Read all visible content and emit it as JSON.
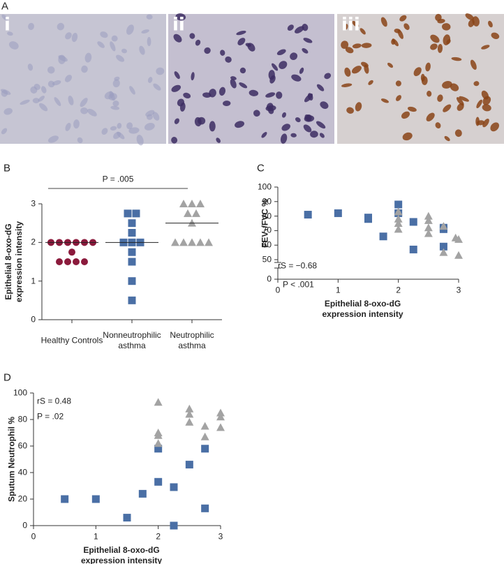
{
  "figure_a": {
    "label": "A",
    "images": [
      "i",
      "ii",
      "iii"
    ]
  },
  "chart_data": [
    {
      "type": "strip",
      "panel_label": "B",
      "ylabel": "Epithelial 8-oxo-dG expression intensity",
      "categories": [
        "Healthy Controls",
        "Nonneutrophilic asthma",
        "Neutrophilic asthma"
      ],
      "series": [
        {
          "color": "#8b1a3c",
          "marker": "circle",
          "values": [
            2,
            2,
            2,
            2,
            2,
            2,
            1.75,
            1.5,
            1.5,
            1.5,
            1.5
          ]
        },
        {
          "color": "#4a6fa5",
          "marker": "square",
          "values": [
            2.75,
            2.75,
            2.5,
            2.25,
            2,
            2,
            2,
            1.75,
            1.5,
            1,
            0.5
          ]
        },
        {
          "color": "#a3a3a3",
          "marker": "triangle",
          "values": [
            3,
            3,
            3,
            2.75,
            2.75,
            2.5,
            2,
            2,
            2,
            2,
            2
          ]
        }
      ],
      "medians": [
        2,
        2,
        2.5
      ],
      "annotation": "P = .005",
      "ylim": [
        0,
        3
      ],
      "yticks": [
        0,
        1,
        2,
        3
      ]
    },
    {
      "type": "scatter",
      "panel_label": "C",
      "xlabel": "Epithelial 8-oxo-dG expression intensity",
      "ylabel": "FEV₁/FVC %",
      "series": [
        {
          "color": "#4a6fa5",
          "marker": "square",
          "x": [
            0.5,
            1,
            1.5,
            1.5,
            1.75,
            2,
            2,
            2.25,
            2.25,
            2.75,
            2.75,
            2.75
          ],
          "values": [
            81,
            82,
            78,
            79,
            66,
            88,
            82,
            76,
            57,
            72,
            71,
            59
          ]
        },
        {
          "color": "#a3a3a3",
          "marker": "triangle",
          "x": [
            2,
            2,
            2,
            2,
            2.5,
            2.5,
            2.5,
            2.5,
            2.75,
            2.75,
            2.95,
            3,
            3
          ],
          "values": [
            83,
            78,
            75,
            71,
            80,
            77,
            72,
            68,
            55,
            73,
            65,
            64,
            53
          ]
        }
      ],
      "annotations": [
        "rS = −0.68",
        "P < .001"
      ],
      "xlim": [
        0,
        3
      ],
      "xticks": [
        0,
        1,
        2,
        3
      ],
      "ylim": [
        0,
        100
      ],
      "yticks": [
        0,
        50,
        60,
        70,
        80,
        90,
        100
      ],
      "y_break": [
        0,
        50
      ]
    },
    {
      "type": "scatter",
      "panel_label": "D",
      "xlabel": "Epithelial 8-oxo-dG expression intensity",
      "ylabel": "Sputum Neutrophil %",
      "series": [
        {
          "color": "#4a6fa5",
          "marker": "square",
          "x": [
            0.5,
            1,
            1.5,
            1.75,
            2,
            2,
            2.25,
            2.25,
            2.5,
            2.75,
            2.75
          ],
          "values": [
            20,
            20,
            6,
            24,
            58,
            33,
            29,
            0,
            46,
            58,
            13
          ]
        },
        {
          "color": "#a3a3a3",
          "marker": "triangle",
          "x": [
            2,
            2,
            2,
            2,
            2.5,
            2.5,
            2.5,
            2.75,
            2.75,
            3,
            3,
            3
          ],
          "values": [
            93,
            70,
            68,
            62,
            88,
            84,
            78,
            75,
            67,
            85,
            82,
            74
          ]
        }
      ],
      "annotations": [
        "rS = 0.48",
        "P = .02"
      ],
      "xlim": [
        0,
        3
      ],
      "xticks": [
        0,
        1,
        2,
        3
      ],
      "ylim": [
        0,
        100
      ],
      "yticks": [
        0,
        20,
        40,
        60,
        80,
        100
      ]
    }
  ]
}
